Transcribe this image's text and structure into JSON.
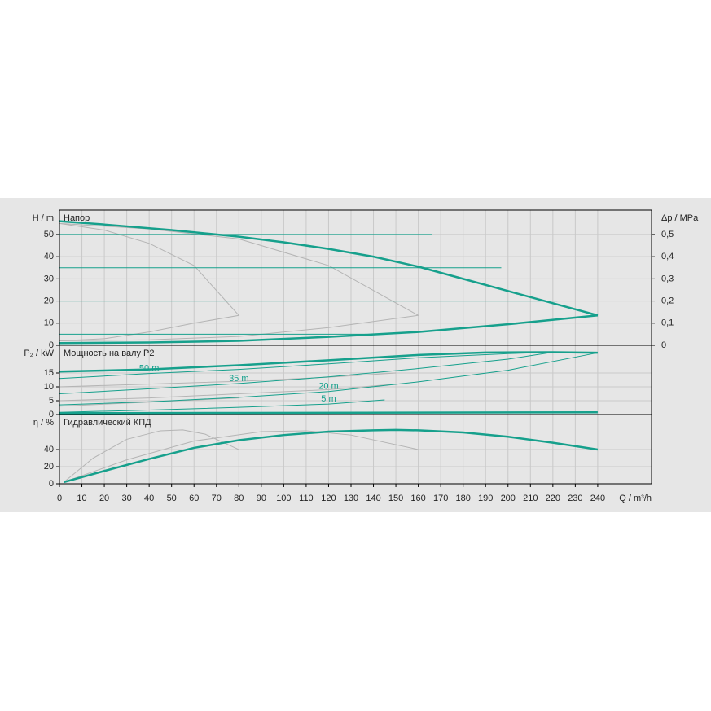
{
  "chart_data": [
    {
      "type": "line",
      "ylabel": "H / m",
      "title": "Напор",
      "y2label": "Δp / MPa",
      "xlim": [
        0,
        264
      ],
      "ylim": [
        0,
        61
      ],
      "yticks": [
        0,
        10,
        20,
        30,
        40,
        50
      ],
      "y2lim": [
        0,
        0.61
      ],
      "y2ticks": [
        0,
        {
          "value": 0.1,
          "label": "0,1"
        },
        {
          "value": 0.2,
          "label": "0,2"
        },
        {
          "value": 0.3,
          "label": "0,3"
        },
        {
          "value": 0.4,
          "label": "0,4"
        },
        {
          "value": 0.5,
          "label": "0,5"
        }
      ],
      "grid": true,
      "series": [
        {
          "color": "#b4b4b4",
          "x": [
            0,
            20,
            40,
            60,
            80,
            80,
            60,
            40,
            20,
            0
          ],
          "values": [
            55,
            52,
            46,
            36,
            13.5,
            13.5,
            10,
            6,
            3,
            2
          ]
        },
        {
          "color": "#b4b4b4",
          "x": [
            0,
            40,
            80,
            120,
            160,
            160,
            120,
            80,
            40,
            0
          ],
          "values": [
            55,
            52.5,
            48,
            36,
            13.5,
            13.5,
            8,
            4,
            2.5,
            2
          ]
        },
        {
          "color": "#16a08c",
          "x": [
            0,
            166
          ],
          "values": [
            50,
            50
          ]
        },
        {
          "color": "#16a08c",
          "x": [
            0,
            197
          ],
          "values": [
            35,
            35
          ]
        },
        {
          "color": "#16a08c",
          "x": [
            0,
            222
          ],
          "values": [
            20,
            20
          ]
        },
        {
          "color": "#16a08c",
          "x": [
            0,
            137
          ],
          "values": [
            5,
            5
          ]
        },
        {
          "color": "#16a08c",
          "width": 2.5,
          "x": [
            0,
            20,
            50,
            80,
            100,
            120,
            140,
            160,
            180,
            200,
            220,
            240
          ],
          "values": [
            56,
            54.5,
            52,
            49,
            46.5,
            43.5,
            40,
            35.5,
            30,
            24.5,
            19,
            13.5
          ]
        },
        {
          "color": "#16a08c",
          "width": 2.5,
          "x": [
            0,
            40,
            80,
            120,
            160,
            200,
            240
          ],
          "values": [
            1,
            1.3,
            2,
            3.8,
            6,
            9.5,
            13.5
          ]
        }
      ]
    },
    {
      "type": "line",
      "ylabel": "P₂ / kW",
      "title": "Мощность на валу P2",
      "xlim": [
        0,
        264
      ],
      "ylim": [
        0,
        25
      ],
      "yticks": [
        0,
        5,
        10,
        15
      ],
      "grid": true,
      "series": [
        {
          "color": "#b4b4b4",
          "x": [
            0,
            40,
            80,
            120,
            150
          ],
          "values": [
            10,
            11,
            12,
            13.5,
            15
          ]
        },
        {
          "color": "#b4b4b4",
          "x": [
            0,
            40,
            80,
            120,
            150
          ],
          "values": [
            5,
            6,
            7.5,
            9,
            11
          ]
        },
        {
          "color": "#b4b4b4",
          "x": [
            0,
            40,
            80
          ],
          "values": [
            3,
            4.5,
            6
          ]
        },
        {
          "color": "#16a08c",
          "width": 2.5,
          "x": [
            0,
            40,
            80,
            120,
            160,
            190,
            220,
            240
          ],
          "values": [
            15.5,
            16.3,
            17.8,
            19.6,
            21.5,
            22.4,
            22.5,
            22.3
          ]
        },
        {
          "name": "50 m",
          "color": "#16a08c",
          "x": [
            0,
            40,
            80,
            120,
            160,
            200,
            220
          ],
          "values": [
            13,
            14.8,
            16.3,
            18.3,
            20.5,
            22,
            22.5
          ]
        },
        {
          "name": "35 m",
          "color": "#16a08c",
          "x": [
            0,
            40,
            80,
            120,
            160,
            200,
            220
          ],
          "values": [
            7.5,
            9.3,
            11.2,
            13.6,
            16.6,
            20,
            22.5
          ]
        },
        {
          "name": "20 m",
          "color": "#16a08c",
          "x": [
            0,
            40,
            80,
            120,
            160,
            200,
            240
          ],
          "values": [
            3.5,
            4.6,
            6.2,
            8.3,
            11.8,
            16,
            22.3
          ]
        },
        {
          "name": "5 m",
          "color": "#16a08c",
          "x": [
            0,
            40,
            80,
            120,
            145
          ],
          "values": [
            0.8,
            1.6,
            2.6,
            3.8,
            5.3
          ]
        },
        {
          "color": "#16a08c",
          "width": 2.5,
          "x": [
            0,
            80,
            160,
            240
          ],
          "values": [
            0.5,
            0.6,
            0.7,
            0.8
          ]
        }
      ]
    },
    {
      "type": "line",
      "ylabel": "η / %",
      "title": "Гидравлический КПД",
      "xlabel": "Q / m³/h",
      "xlim": [
        0,
        264
      ],
      "ylim": [
        0,
        81
      ],
      "yticks": [
        0,
        20,
        40
      ],
      "xticks": [
        0,
        10,
        20,
        30,
        40,
        50,
        60,
        70,
        80,
        90,
        100,
        110,
        120,
        130,
        140,
        150,
        160,
        170,
        180,
        190,
        200,
        210,
        220,
        230,
        240
      ],
      "grid": true,
      "series": [
        {
          "color": "#b4b4b4",
          "x": [
            2,
            15,
            30,
            45,
            55,
            65,
            80
          ],
          "values": [
            2,
            30,
            52,
            62,
            63,
            58,
            40
          ]
        },
        {
          "color": "#b4b4b4",
          "x": [
            2,
            30,
            60,
            90,
            110,
            130,
            160
          ],
          "values": [
            2,
            28,
            50,
            61,
            62,
            57,
            40
          ]
        },
        {
          "color": "#16a08c",
          "width": 2.5,
          "x": [
            2,
            20,
            40,
            60,
            80,
            100,
            120,
            140,
            150,
            160,
            180,
            200,
            220,
            240
          ],
          "values": [
            2,
            15,
            29,
            42,
            51,
            57,
            61,
            62.5,
            63,
            62.5,
            60,
            55,
            48,
            40
          ]
        }
      ]
    }
  ]
}
